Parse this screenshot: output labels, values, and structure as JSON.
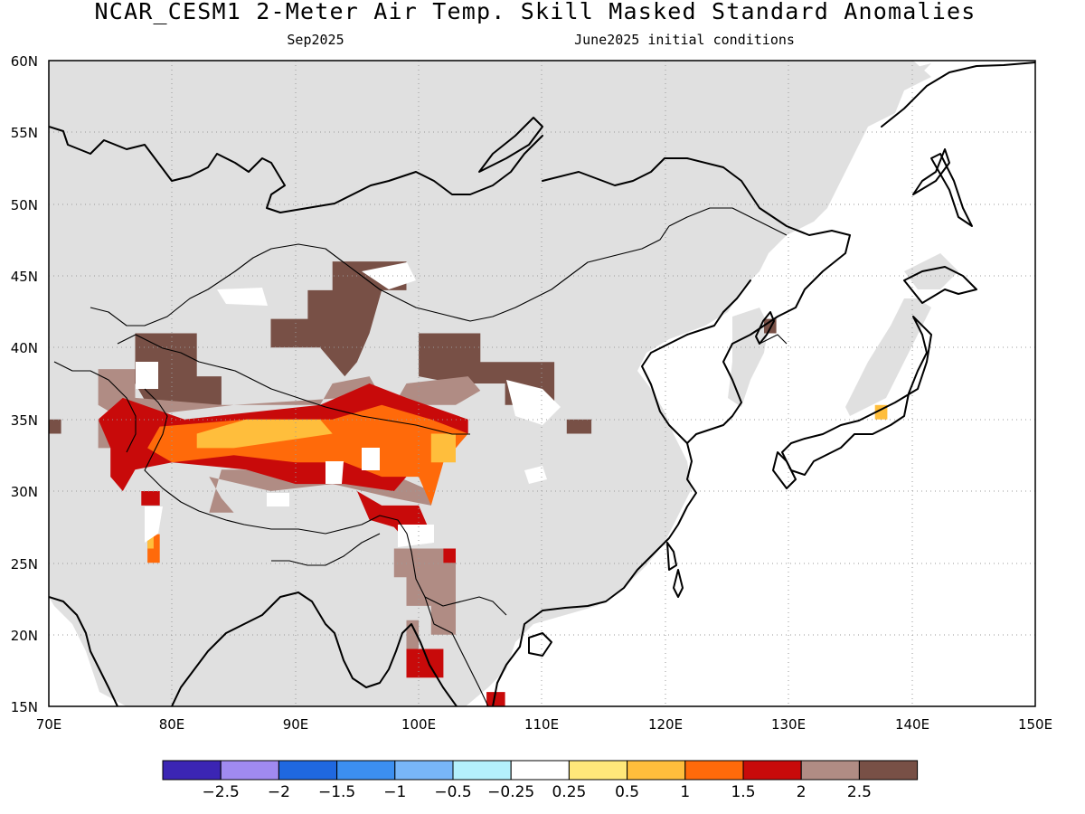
{
  "title": "NCAR_CESM1 2-Meter Air Temp. Skill Masked Standard Anomalies",
  "subtitle_left": "Sep2025",
  "subtitle_right": "June2025 initial conditions",
  "map": {
    "lon_range": [
      70,
      150
    ],
    "lat_range": [
      15,
      60
    ],
    "x_ticks": [
      "70E",
      "80E",
      "90E",
      "100E",
      "110E",
      "120E",
      "130E",
      "140E",
      "150E"
    ],
    "y_ticks": [
      "15N",
      "20N",
      "25N",
      "30N",
      "35N",
      "40N",
      "45N",
      "50N",
      "55N",
      "60N"
    ],
    "masked_color": "#e0e0e0",
    "grid": "dotted"
  },
  "colorbar": {
    "colors": [
      "#3b25b4",
      "#a08af0",
      "#1f68e0",
      "#3c8ff0",
      "#78b6f8",
      "#b4f0fc",
      "#ffffff",
      "#ffe87a",
      "#ffbe3c",
      "#ff6a0a",
      "#c80a0a",
      "#b08c84",
      "#785046"
    ],
    "labels": [
      "-2.5",
      "-2",
      "-1.5",
      "-1",
      "-0.5",
      "-0.25",
      "0.25",
      "0.5",
      "1",
      "1.5",
      "2",
      "2.5"
    ]
  },
  "anomaly_regions": [
    {
      "level": "2.5",
      "color": "#785046",
      "points": [
        [
          77,
          41
        ],
        [
          82,
          41
        ],
        [
          82,
          38
        ],
        [
          84,
          38
        ],
        [
          84,
          36
        ],
        [
          78,
          36
        ],
        [
          77,
          37.5
        ]
      ]
    },
    {
      "level": "2.5",
      "color": "#785046",
      "points": [
        [
          88,
          42
        ],
        [
          91,
          42
        ],
        [
          91,
          44
        ],
        [
          93,
          44
        ],
        [
          93,
          46
        ],
        [
          99,
          46
        ],
        [
          99,
          44
        ],
        [
          97,
          44
        ],
        [
          96,
          41
        ],
        [
          95,
          39
        ],
        [
          94,
          38
        ],
        [
          92,
          40
        ],
        [
          90,
          40
        ],
        [
          88,
          40
        ]
      ]
    },
    {
      "level": "2.5",
      "color": "#785046",
      "points": [
        [
          100,
          41
        ],
        [
          105,
          41
        ],
        [
          105,
          39
        ],
        [
          111,
          39
        ],
        [
          111,
          36
        ],
        [
          107,
          36
        ],
        [
          107,
          37.5
        ],
        [
          103,
          37.5
        ],
        [
          100,
          38
        ]
      ]
    },
    {
      "level": "2.5",
      "color": "#785046",
      "points": [
        [
          112,
          35
        ],
        [
          114,
          35
        ],
        [
          114,
          34
        ],
        [
          112,
          34
        ]
      ]
    },
    {
      "level": "2.5",
      "color": "#785046",
      "points": [
        [
          69,
          35
        ],
        [
          71,
          35
        ],
        [
          71,
          34
        ],
        [
          69,
          34
        ]
      ]
    },
    {
      "level": "2",
      "color": "#b08c84",
      "points": [
        [
          74,
          38.5
        ],
        [
          77,
          38.5
        ],
        [
          77,
          36.5
        ],
        [
          84,
          36
        ],
        [
          92,
          36
        ],
        [
          93,
          37.5
        ],
        [
          96,
          38
        ],
        [
          97,
          36.5
        ],
        [
          98,
          36
        ],
        [
          99,
          37.5
        ],
        [
          104,
          38
        ],
        [
          105,
          37
        ],
        [
          103,
          36
        ],
        [
          98,
          36
        ],
        [
          94,
          36.5
        ],
        [
          85,
          36
        ],
        [
          80,
          35.5
        ],
        [
          76,
          35
        ],
        [
          74,
          36
        ]
      ]
    },
    {
      "level": "2",
      "color": "#b08c84",
      "points": [
        [
          83,
          31
        ],
        [
          88,
          30
        ],
        [
          93,
          30.5
        ],
        [
          98,
          29.5
        ],
        [
          101,
          29
        ],
        [
          101,
          30
        ],
        [
          97,
          31.5
        ],
        [
          93,
          31.5
        ],
        [
          88,
          31.5
        ],
        [
          84,
          31.5
        ],
        [
          83,
          28.5
        ],
        [
          85,
          28.5
        ],
        [
          84,
          29.5
        ]
      ]
    },
    {
      "level": "2",
      "color": "#b08c84",
      "points": [
        [
          98,
          26
        ],
        [
          103,
          26
        ],
        [
          103,
          20
        ],
        [
          101,
          20
        ],
        [
          101,
          22
        ],
        [
          99,
          22
        ],
        [
          99,
          24
        ],
        [
          98,
          24
        ]
      ]
    },
    {
      "level": "2",
      "color": "#b08c84",
      "points": [
        [
          99,
          21
        ],
        [
          100,
          21
        ],
        [
          100,
          19
        ],
        [
          99,
          19
        ]
      ]
    },
    {
      "level": "2",
      "color": "#b08c84",
      "points": [
        [
          74,
          35
        ],
        [
          76,
          35
        ],
        [
          76,
          33
        ],
        [
          74,
          33
        ]
      ]
    },
    {
      "level": "1.5",
      "color": "#c80a0a",
      "points": [
        [
          76,
          36.5
        ],
        [
          81,
          35
        ],
        [
          92,
          36
        ],
        [
          96,
          37.5
        ],
        [
          99,
          36.5
        ],
        [
          104,
          35
        ],
        [
          104,
          34
        ],
        [
          101,
          33
        ],
        [
          99,
          31
        ],
        [
          98,
          30
        ],
        [
          94,
          30.5
        ],
        [
          90,
          30.5
        ],
        [
          86,
          31.5
        ],
        [
          80,
          32
        ],
        [
          77,
          31.5
        ],
        [
          76,
          30
        ],
        [
          75,
          31
        ],
        [
          75,
          33
        ],
        [
          74,
          35
        ]
      ]
    },
    {
      "level": "1.5",
      "color": "#c80a0a",
      "points": [
        [
          77.5,
          30
        ],
        [
          79,
          30
        ],
        [
          79,
          29
        ],
        [
          77.5,
          29
        ]
      ]
    },
    {
      "level": "1.5",
      "color": "#c80a0a",
      "points": [
        [
          95,
          30
        ],
        [
          97,
          29
        ],
        [
          100,
          29
        ],
        [
          101,
          27
        ],
        [
          99,
          26.5
        ],
        [
          98,
          27.5
        ],
        [
          96,
          28
        ]
      ]
    },
    {
      "level": "1.5",
      "color": "#c80a0a",
      "points": [
        [
          99,
          19
        ],
        [
          102,
          19
        ],
        [
          102,
          17
        ],
        [
          99,
          17
        ]
      ]
    },
    {
      "level": "1.5",
      "color": "#c80a0a",
      "points": [
        [
          105.5,
          16
        ],
        [
          107,
          16
        ],
        [
          107,
          15
        ],
        [
          105.5,
          15
        ]
      ]
    },
    {
      "level": "1.5",
      "color": "#c80a0a",
      "points": [
        [
          102,
          26
        ],
        [
          103,
          26
        ],
        [
          103,
          25
        ],
        [
          102,
          25
        ]
      ]
    },
    {
      "level": "1",
      "color": "#ff6a0a",
      "points": [
        [
          79,
          34.5
        ],
        [
          86,
          35
        ],
        [
          93,
          35
        ],
        [
          97,
          36
        ],
        [
          101,
          35
        ],
        [
          104,
          34
        ],
        [
          102,
          32
        ],
        [
          101,
          29
        ],
        [
          100,
          31
        ],
        [
          97,
          31
        ],
        [
          94,
          32
        ],
        [
          90,
          32
        ],
        [
          85,
          32.5
        ],
        [
          80,
          32
        ],
        [
          78,
          33
        ]
      ]
    },
    {
      "level": "1",
      "color": "#ff6a0a",
      "points": [
        [
          78,
          27
        ],
        [
          79,
          27
        ],
        [
          79,
          25
        ],
        [
          78,
          25
        ]
      ]
    },
    {
      "level": "0.5",
      "color": "#ffbe3c",
      "points": [
        [
          82,
          34
        ],
        [
          86,
          35
        ],
        [
          92,
          35
        ],
        [
          93,
          34
        ],
        [
          89,
          33.5
        ],
        [
          85,
          33
        ],
        [
          82,
          33
        ]
      ]
    },
    {
      "level": "0.5",
      "color": "#ffbe3c",
      "points": [
        [
          101,
          34
        ],
        [
          103,
          34
        ],
        [
          103,
          32
        ],
        [
          101,
          32
        ]
      ]
    },
    {
      "level": "0.5",
      "color": "#ffbe3c",
      "points": [
        [
          137,
          36
        ],
        [
          138,
          36
        ],
        [
          138,
          35
        ],
        [
          137,
          35
        ]
      ]
    },
    {
      "level": "0.5",
      "color": "#ffbe3c",
      "points": [
        [
          78,
          27
        ],
        [
          78.5,
          27
        ],
        [
          78.5,
          26
        ],
        [
          78,
          26
        ]
      ]
    },
    {
      "level": "2.5",
      "color": "#785046",
      "points": [
        [
          128,
          42
        ],
        [
          129,
          42
        ],
        [
          129,
          41
        ],
        [
          128,
          41
        ]
      ]
    }
  ]
}
